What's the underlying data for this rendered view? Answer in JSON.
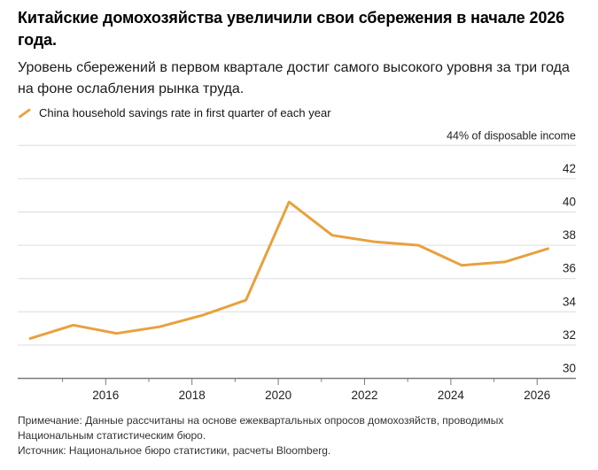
{
  "header": {
    "title": "Китайские домохозяйства увеличили свои сбережения в начале 2026 года.",
    "subtitle": "Уровень сбережений в первом квартале достиг самого высокого уровня за три года на фоне ослабления рынка труда.",
    "legend_label": "China household savings rate in first quarter of each year"
  },
  "chart_data": {
    "type": "line",
    "title": "Китайские домохозяйства увеличили свои сбережения в начале 2026 года.",
    "unit_label": "44% of disposable income",
    "x": [
      2014,
      2015,
      2016,
      2017,
      2018,
      2019,
      2020,
      2021,
      2022,
      2023,
      2024,
      2025,
      2026
    ],
    "series": [
      {
        "name": "China household savings rate in first quarter of each year",
        "values": [
          32.4,
          33.2,
          32.7,
          33.1,
          33.8,
          34.7,
          40.6,
          38.6,
          38.2,
          38.0,
          36.8,
          37.0,
          37.8
        ],
        "color": "#E8A13E"
      }
    ],
    "xlabel": "",
    "ylabel": "% of disposable income",
    "ylim": [
      30,
      44
    ],
    "y_tick_step": 2,
    "y_tick_labels_right": [
      "42",
      "40",
      "38",
      "36",
      "34",
      "32",
      "30"
    ],
    "x_major_ticks": [
      2016,
      2018,
      2020,
      2022,
      2024,
      2026
    ],
    "x_minor_ticks": [
      2015,
      2017,
      2019,
      2021,
      2023,
      2025
    ],
    "x_domain": [
      2014,
      2027
    ],
    "q1_point_offset": 0.25,
    "grid": "horizontal",
    "legend_position": "top-left"
  },
  "footer": {
    "note": "Примечание: Данные рассчитаны на основе ежеквартальных опросов домохозяйств, проводимых Национальным статистическим бюро.",
    "source": "Источник: Национальное бюро статистики, расчеты Bloomberg."
  },
  "colors": {
    "accent_orange": "#E8A13E",
    "gridline": "#DCDCDC",
    "axis": "#7A7A7A",
    "text_dark": "#1E1E1E"
  }
}
